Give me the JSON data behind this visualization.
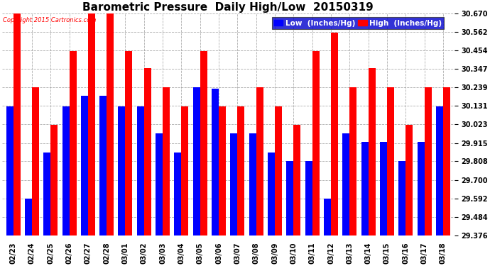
{
  "title": "Barometric Pressure  Daily High/Low  20150319",
  "copyright": "Copyright 2015 Cartronics.com",
  "dates": [
    "02/23",
    "02/24",
    "02/25",
    "02/26",
    "02/27",
    "02/28",
    "03/01",
    "03/02",
    "03/03",
    "03/04",
    "03/05",
    "03/06",
    "03/07",
    "03/08",
    "03/09",
    "03/10",
    "03/11",
    "03/12",
    "03/13",
    "03/14",
    "03/15",
    "03/16",
    "03/17",
    "03/18"
  ],
  "low": [
    30.13,
    29.59,
    29.86,
    30.13,
    30.19,
    30.19,
    30.13,
    30.13,
    29.97,
    29.86,
    30.24,
    30.23,
    29.97,
    29.97,
    29.86,
    29.81,
    29.81,
    29.59,
    29.97,
    29.92,
    29.92,
    29.81,
    29.92,
    30.13
  ],
  "high": [
    30.67,
    30.24,
    30.02,
    30.45,
    30.67,
    30.67,
    30.45,
    30.35,
    30.24,
    30.13,
    30.45,
    30.13,
    30.13,
    30.24,
    30.13,
    30.02,
    30.45,
    30.56,
    30.24,
    30.35,
    30.24,
    30.02,
    30.24,
    30.24
  ],
  "ylim_min": 29.376,
  "ylim_max": 30.67,
  "yticks": [
    29.376,
    29.484,
    29.592,
    29.7,
    29.808,
    29.915,
    30.023,
    30.131,
    30.239,
    30.347,
    30.454,
    30.562,
    30.67
  ],
  "bar_width": 0.38,
  "low_color": "#0000ff",
  "high_color": "#ff0000",
  "bg_color": "#ffffff",
  "grid_color": "#999999",
  "title_fontsize": 11,
  "tick_fontsize": 7,
  "legend_fontsize": 7.5
}
